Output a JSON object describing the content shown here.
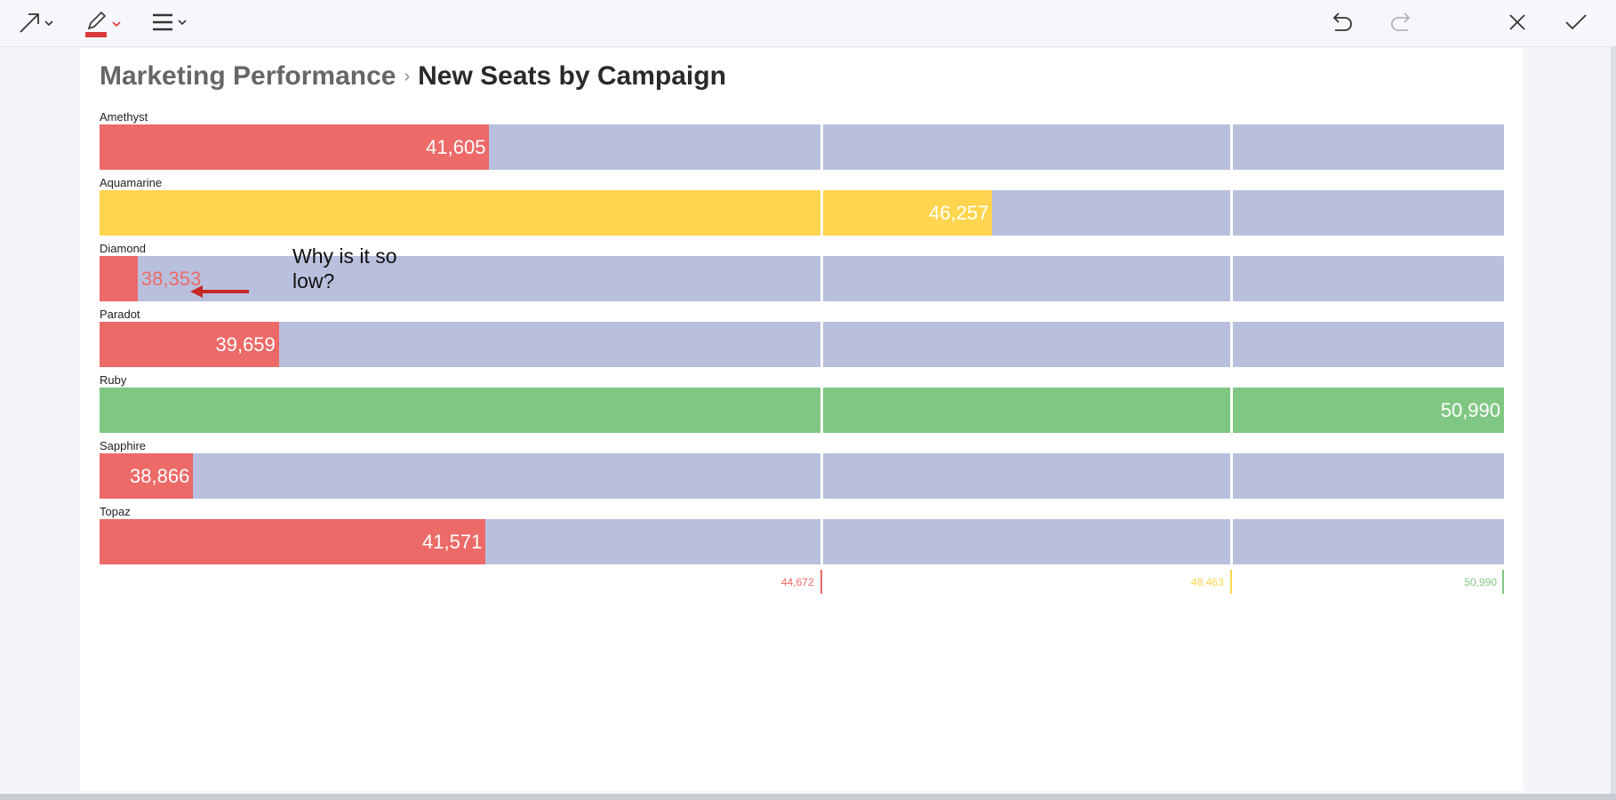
{
  "breadcrumb": {
    "parent": "Marketing Performance",
    "separator": "›",
    "current": "New Seats by Campaign"
  },
  "toolbar": {
    "left": [
      "arrow-tool-icon",
      "pen-tool-icon",
      "menu-icon"
    ],
    "right": [
      "undo-icon",
      "redo-icon",
      "close-icon",
      "check-icon"
    ],
    "pen_color": "#d8393b"
  },
  "annotation": {
    "text_line1": "Why is it so",
    "text_line2": "low?",
    "arrow_color": "#c62828"
  },
  "colors": {
    "below": "#ec6a68",
    "middle": "#ffd54f",
    "above": "#81c784",
    "track": "#b9c0dd"
  },
  "chart_data": {
    "type": "bar",
    "orientation": "horizontal",
    "title": "New Seats by Campaign",
    "categories": [
      "Amethyst",
      "Aquamarine",
      "Diamond",
      "Paradot",
      "Ruby",
      "Sapphire",
      "Topaz"
    ],
    "values": [
      41605,
      46257,
      38353,
      39659,
      50990,
      38866,
      41571
    ],
    "value_labels": [
      "41,605",
      "46,257",
      "38,353",
      "39,659",
      "50,990",
      "38,866",
      "41,571"
    ],
    "bands": [
      "below",
      "middle",
      "below",
      "below",
      "above",
      "below",
      "below"
    ],
    "thresholds": [
      44672,
      48463,
      50990
    ],
    "threshold_labels": [
      "44,672",
      "48,463",
      "50,990"
    ],
    "xlim": [
      38000,
      50990
    ],
    "grid": false,
    "legend": "none"
  }
}
